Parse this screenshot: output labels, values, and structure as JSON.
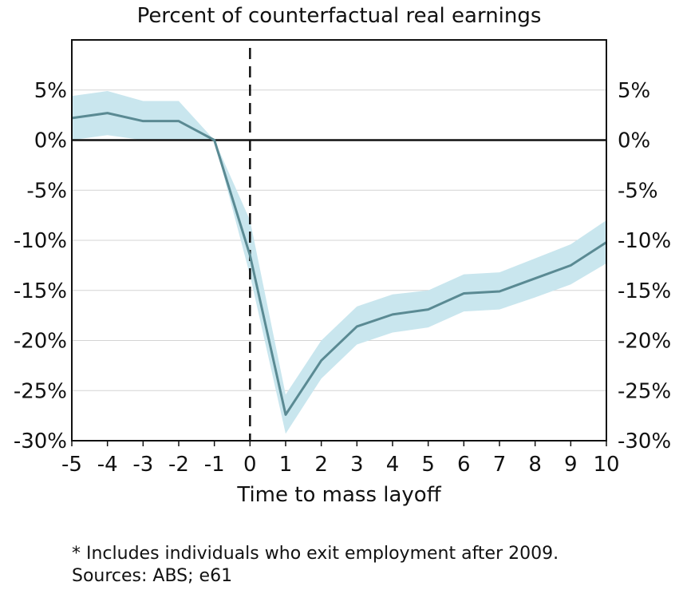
{
  "chart_data": {
    "type": "line",
    "title": "Percent of counterfactual real earnings",
    "xlabel": "Time to mass layoff",
    "ylabel": "",
    "x": [
      -5,
      -4,
      -3,
      -2,
      -1,
      0,
      1,
      2,
      3,
      4,
      5,
      6,
      7,
      8,
      9,
      10
    ],
    "xticks": [
      "-5",
      "-4",
      "-3",
      "-2",
      "-1",
      "0",
      "1",
      "2",
      "3",
      "4",
      "5",
      "6",
      "7",
      "8",
      "9",
      "10"
    ],
    "xlim": [
      -5,
      10
    ],
    "ylim": [
      -30,
      10
    ],
    "yticks": [
      5,
      0,
      -5,
      -10,
      -15,
      -20,
      -25,
      -30
    ],
    "ytick_labels": [
      "5%",
      "0%",
      "-5%",
      "-10%",
      "-15%",
      "-20%",
      "-25%",
      "-30%"
    ],
    "series": [
      {
        "values": [
          2.2,
          2.7,
          1.9,
          1.9,
          0.0,
          -11.5,
          -27.4,
          -22.0,
          -18.6,
          -17.4,
          -16.9,
          -15.3,
          -15.1,
          -13.8,
          -12.5,
          -10.2
        ],
        "lower": [
          0.0,
          0.5,
          0.0,
          0.0,
          0.0,
          -13.5,
          -29.3,
          -23.8,
          -20.4,
          -19.2,
          -18.7,
          -17.1,
          -16.9,
          -15.7,
          -14.4,
          -12.3
        ],
        "upper": [
          4.4,
          4.9,
          3.9,
          3.9,
          0.0,
          -8.0,
          -25.4,
          -20.0,
          -16.6,
          -15.4,
          -15.0,
          -13.4,
          -13.2,
          -11.8,
          -10.4,
          -8.0
        ],
        "color": "#5a8a93",
        "band_color": "#c9e6ee"
      }
    ],
    "reference_line_x": 0,
    "zero_line": true,
    "grid": true,
    "legend": "none"
  },
  "notes": {
    "footnote": "* Includes individuals who exit employment after 2009.",
    "sources": "Sources: ABS; e61"
  }
}
